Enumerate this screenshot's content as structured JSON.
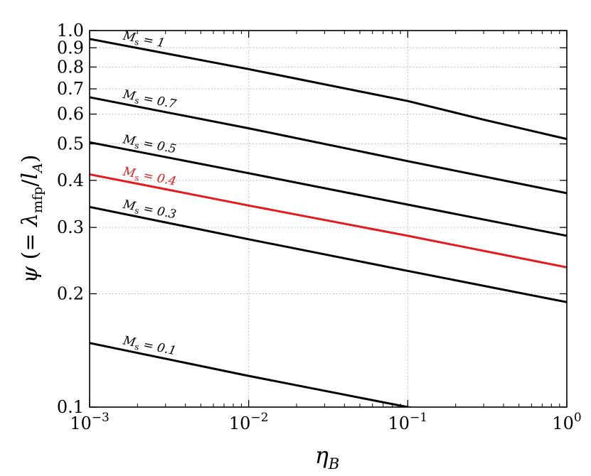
{
  "chart_data": {
    "type": "line",
    "title": "",
    "xlabel": "η_B",
    "ylabel": "ψ (= λ_mfp/l_A)",
    "xscale": "log",
    "yscale": "log",
    "xlim": [
      0.001,
      1
    ],
    "ylim": [
      0.1,
      1.0
    ],
    "grid": true,
    "x_major_ticks": [
      {
        "value": 0.001,
        "base": "10",
        "exp": "−3"
      },
      {
        "value": 0.01,
        "base": "10",
        "exp": "−2"
      },
      {
        "value": 0.1,
        "base": "10",
        "exp": "−1"
      },
      {
        "value": 1,
        "base": "10",
        "exp": "0"
      }
    ],
    "y_ticks": [
      {
        "value": 0.1,
        "label": "0.1"
      },
      {
        "value": 0.2,
        "label": "0.2"
      },
      {
        "value": 0.3,
        "label": "0.3"
      },
      {
        "value": 0.4,
        "label": "0.4"
      },
      {
        "value": 0.5,
        "label": "0.5"
      },
      {
        "value": 0.6,
        "label": "0.6"
      },
      {
        "value": 0.7,
        "label": "0.7"
      },
      {
        "value": 0.8,
        "label": "0.8"
      },
      {
        "value": 0.9,
        "label": "0.9"
      },
      {
        "value": 1.0,
        "label": "1.0"
      }
    ],
    "series": [
      {
        "name": "M_s = 1",
        "ms": "1",
        "color": "#000000",
        "x": [
          0.001,
          0.01,
          0.1,
          0.3,
          1
        ],
        "y": [
          0.95,
          0.79,
          0.65,
          0.58,
          0.515
        ]
      },
      {
        "name": "M_s = 0.7",
        "ms": "0.7",
        "color": "#000000",
        "x": [
          0.001,
          0.01,
          0.1,
          1
        ],
        "y": [
          0.665,
          0.55,
          0.45,
          0.37
        ]
      },
      {
        "name": "M_s = 0.5",
        "ms": "0.5",
        "color": "#000000",
        "x": [
          0.001,
          0.01,
          0.1,
          1
        ],
        "y": [
          0.505,
          0.418,
          0.345,
          0.285
        ]
      },
      {
        "name": "M_s = 0.4",
        "ms": "0.4",
        "color": "#e41a1c",
        "x": [
          0.001,
          0.01,
          0.1,
          1
        ],
        "y": [
          0.415,
          0.343,
          0.285,
          0.235
        ]
      },
      {
        "name": "M_s = 0.3",
        "ms": "0.3",
        "color": "#000000",
        "x": [
          0.001,
          0.01,
          0.1,
          1
        ],
        "y": [
          0.34,
          0.279,
          0.23,
          0.19
        ]
      },
      {
        "name": "M_s = 0.1",
        "ms": "0.1",
        "color": "#000000",
        "x": [
          0.001,
          0.01,
          0.1,
          0.2
        ],
        "y": [
          0.148,
          0.121,
          0.1,
          0.095
        ]
      }
    ]
  }
}
